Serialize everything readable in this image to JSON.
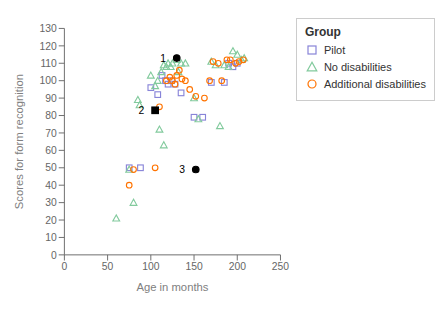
{
  "chart_data": {
    "type": "scatter",
    "xlabel": "Age in months",
    "ylabel": "Scores for form recognition",
    "xlim": [
      0,
      250
    ],
    "ylim": [
      0,
      130
    ],
    "xticks": [
      0,
      50,
      100,
      150,
      200,
      250
    ],
    "yticks": [
      0,
      10,
      20,
      30,
      40,
      50,
      60,
      70,
      80,
      90,
      100,
      110,
      120,
      130
    ],
    "legend": "right",
    "legend_title": "Group",
    "series": [
      {
        "name": "Pilot",
        "marker": "square",
        "color": "#8884d8",
        "x": [
          75,
          88,
          100,
          108,
          113,
          117,
          120,
          124,
          128,
          135,
          150,
          160,
          170,
          185,
          190,
          195,
          200
        ],
        "y": [
          50,
          50,
          96,
          92,
          103,
          100,
          98,
          100,
          98,
          93,
          79,
          79,
          99,
          99,
          110,
          108,
          110
        ]
      },
      {
        "name": "No disabilities",
        "marker": "triangle",
        "color": "#82ca9d",
        "x": [
          60,
          75,
          80,
          85,
          87,
          100,
          105,
          108,
          112,
          115,
          118,
          120,
          123,
          125,
          130,
          132,
          135,
          140,
          150,
          155,
          110,
          115,
          170,
          175,
          180,
          185,
          190,
          195,
          200,
          205,
          208
        ],
        "y": [
          21,
          49,
          30,
          89,
          86,
          103,
          97,
          100,
          105,
          109,
          108,
          110,
          108,
          110,
          112,
          105,
          110,
          110,
          90,
          78,
          72,
          63,
          111,
          109,
          74,
          109,
          108,
          117,
          115,
          112,
          113
        ]
      },
      {
        "name": "Additional disabilities",
        "marker": "circle",
        "color": "#ff7300",
        "x": [
          80,
          105,
          75,
          110,
          118,
          122,
          125,
          128,
          130,
          133,
          136,
          140,
          145,
          152,
          162,
          168,
          172,
          178,
          182,
          188,
          192,
          198,
          202,
          207
        ],
        "y": [
          49,
          50,
          40,
          85,
          100,
          102,
          100,
          98,
          103,
          106,
          101,
          100,
          95,
          91,
          90,
          100,
          111,
          110,
          100,
          112,
          112,
          110,
          111,
          112
        ]
      }
    ],
    "annotations": [
      {
        "x": 130,
        "y": 113,
        "text": "1",
        "marker": "circle",
        "color": "#000000"
      },
      {
        "x": 105,
        "y": 83,
        "text": "2",
        "marker": "square",
        "color": "#000000"
      },
      {
        "x": 152,
        "y": 49,
        "text": "3",
        "marker": "circle",
        "color": "#000000"
      }
    ]
  }
}
